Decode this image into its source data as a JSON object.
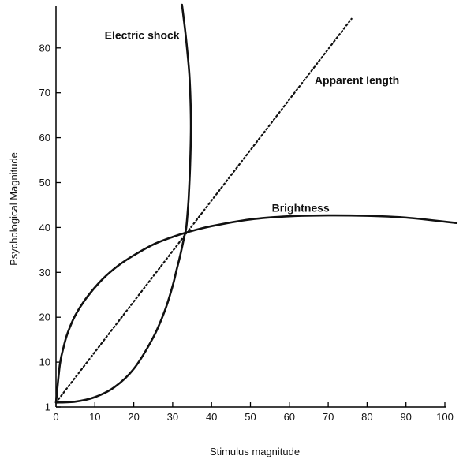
{
  "chart_data": {
    "type": "line",
    "xlabel": "Stimulus magnitude",
    "ylabel": "Psychological Magnitude",
    "xlim": [
      0,
      103
    ],
    "ylim": [
      0,
      89
    ],
    "x_ticks": [
      0,
      10,
      20,
      30,
      40,
      50,
      60,
      70,
      80,
      90,
      100
    ],
    "y_ticks": [
      1,
      10,
      20,
      30,
      40,
      50,
      60,
      70,
      80
    ],
    "grid": false,
    "series": [
      {
        "name": "Electric shock",
        "style": "solid",
        "x": [
          0,
          5,
          10,
          15,
          20,
          25,
          28,
          30,
          31,
          32,
          33,
          33.5,
          34,
          34.2,
          34.5,
          34.7,
          34.6,
          34.3,
          33.8,
          33.2,
          32.4
        ],
        "y": [
          1,
          1.2,
          2.2,
          4.4,
          8.5,
          15.5,
          21.5,
          27,
          30.5,
          34,
          38,
          40,
          45,
          48,
          54,
          62,
          68,
          74,
          79,
          84,
          90
        ]
      },
      {
        "name": "Apparent length",
        "style": "dotted",
        "x": [
          0,
          76
        ],
        "y": [
          1,
          86.5
        ]
      },
      {
        "name": "Brightness",
        "style": "solid",
        "x": [
          0,
          1,
          2,
          3,
          5,
          8,
          12,
          16,
          20,
          25,
          30,
          34,
          40,
          50,
          60,
          70,
          80,
          90,
          103
        ],
        "y": [
          1,
          9.5,
          13.5,
          16.5,
          20.5,
          24.5,
          28.5,
          31.5,
          33.8,
          36.2,
          37.9,
          39,
          40.3,
          41.8,
          42.5,
          42.7,
          42.6,
          42.2,
          41
        ]
      }
    ],
    "annotations": [
      {
        "text": "Electric shock",
        "series": "Electric shock",
        "x": 12.5,
        "y": 82
      },
      {
        "text": "Apparent length",
        "series": "Apparent length",
        "x": 66.5,
        "y": 72
      },
      {
        "text": "Brightness",
        "series": "Brightness",
        "x": 55.5,
        "y": 43.5
      }
    ]
  }
}
